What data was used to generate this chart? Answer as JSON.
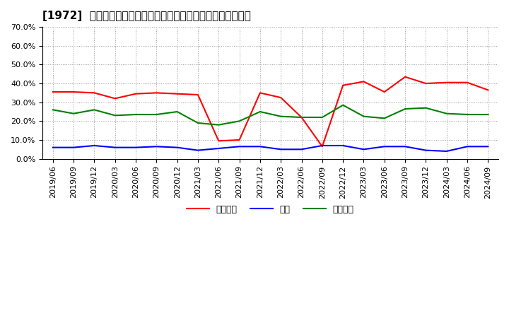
{
  "title": "[1972]  売上債権、在庫、買入債務の総資産に対する比率の推移",
  "x_labels": [
    "2019/06",
    "2019/09",
    "2019/12",
    "2020/03",
    "2020/06",
    "2020/09",
    "2020/12",
    "2021/03",
    "2021/06",
    "2021/09",
    "2021/12",
    "2022/03",
    "2022/06",
    "2022/09",
    "2022/12",
    "2023/03",
    "2023/06",
    "2023/09",
    "2023/12",
    "2024/03",
    "2024/06",
    "2024/09"
  ],
  "売上債権": [
    35.5,
    35.5,
    35.0,
    32.0,
    34.5,
    35.0,
    34.5,
    34.0,
    9.5,
    10.0,
    35.0,
    32.5,
    22.0,
    6.5,
    39.0,
    41.0,
    35.5,
    43.5,
    40.0,
    40.5,
    40.5,
    36.5
  ],
  "在庫": [
    6.0,
    6.0,
    7.0,
    6.0,
    6.0,
    6.5,
    6.0,
    4.5,
    5.5,
    6.5,
    6.5,
    5.0,
    5.0,
    7.0,
    7.0,
    5.0,
    6.5,
    6.5,
    4.5,
    4.0,
    6.5,
    6.5
  ],
  "買入債務": [
    26.0,
    24.0,
    26.0,
    23.0,
    23.5,
    23.5,
    25.0,
    19.0,
    18.0,
    20.0,
    25.0,
    22.5,
    22.0,
    22.0,
    28.5,
    22.5,
    21.5,
    26.5,
    27.0,
    24.0,
    23.5,
    23.5
  ],
  "ylim": [
    0,
    70
  ],
  "yticks": [
    0,
    10,
    20,
    30,
    40,
    50,
    60,
    70
  ],
  "line_colors": {
    "売上債権": "#ff0000",
    "在庫": "#0000ff",
    "買入債務": "#008000"
  },
  "legend_labels": {
    "売上債権": "売上債権",
    "在庫": "在庫",
    "買入債務": "買入債務"
  },
  "background_color": "#ffffff",
  "grid_color": "#999999",
  "title_fontsize": 11,
  "label_fontsize": 8,
  "line_width": 1.5
}
